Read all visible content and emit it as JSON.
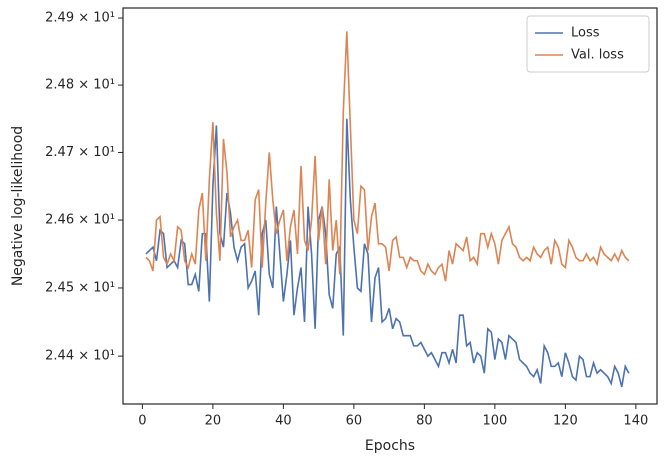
{
  "chart_data": {
    "type": "line",
    "xlabel": "Epochs",
    "ylabel": "Negative log-likelihood",
    "x": [
      1,
      2,
      3,
      4,
      5,
      6,
      7,
      8,
      9,
      10,
      11,
      12,
      13,
      14,
      15,
      16,
      17,
      18,
      19,
      20,
      21,
      22,
      23,
      24,
      25,
      26,
      27,
      28,
      29,
      30,
      31,
      32,
      33,
      34,
      35,
      36,
      37,
      38,
      39,
      40,
      41,
      42,
      43,
      44,
      45,
      46,
      47,
      48,
      49,
      50,
      51,
      52,
      53,
      54,
      55,
      56,
      57,
      58,
      59,
      60,
      61,
      62,
      63,
      64,
      65,
      66,
      67,
      68,
      69,
      70,
      71,
      72,
      73,
      74,
      75,
      76,
      77,
      78,
      79,
      80,
      81,
      82,
      83,
      84,
      85,
      86,
      87,
      88,
      89,
      90,
      91,
      92,
      93,
      94,
      95,
      96,
      97,
      98,
      99,
      100,
      101,
      102,
      103,
      104,
      105,
      106,
      107,
      108,
      109,
      110,
      111,
      112,
      113,
      114,
      115,
      116,
      117,
      118,
      119,
      120,
      121,
      122,
      123,
      124,
      125,
      126,
      127,
      128,
      129,
      130,
      131,
      132,
      133,
      134,
      135,
      136,
      137,
      138
    ],
    "series": [
      {
        "name": "Loss",
        "color": "#4c72b0",
        "values": [
          24.55,
          24.555,
          24.56,
          24.54,
          24.585,
          24.58,
          24.53,
          24.535,
          24.54,
          24.53,
          24.57,
          24.565,
          24.505,
          24.505,
          24.52,
          24.495,
          24.58,
          24.58,
          24.48,
          24.65,
          24.74,
          24.58,
          24.56,
          24.64,
          24.61,
          24.56,
          24.54,
          24.56,
          24.565,
          24.5,
          24.51,
          24.525,
          24.46,
          24.58,
          24.6,
          24.52,
          24.5,
          24.62,
          24.55,
          24.48,
          24.52,
          24.57,
          24.46,
          24.5,
          24.53,
          24.45,
          24.62,
          24.55,
          24.44,
          24.6,
          24.62,
          24.58,
          24.49,
          24.47,
          24.55,
          24.56,
          24.43,
          24.75,
          24.63,
          24.56,
          24.5,
          24.495,
          24.565,
          24.55,
          24.45,
          24.515,
          24.53,
          24.45,
          24.455,
          24.47,
          24.44,
          24.455,
          24.45,
          24.43,
          24.43,
          24.43,
          24.415,
          24.415,
          24.42,
          24.41,
          24.4,
          24.405,
          24.395,
          24.385,
          24.405,
          24.405,
          24.39,
          24.41,
          24.39,
          24.46,
          24.46,
          24.415,
          24.42,
          24.39,
          24.405,
          24.4,
          24.375,
          24.44,
          24.435,
          24.395,
          24.425,
          24.42,
          24.395,
          24.43,
          24.425,
          24.42,
          24.395,
          24.39,
          24.385,
          24.375,
          24.37,
          24.38,
          24.36,
          24.415,
          24.405,
          24.385,
          24.385,
          24.39,
          24.37,
          24.405,
          24.39,
          24.37,
          24.365,
          24.4,
          24.395,
          24.37,
          24.37,
          24.39,
          24.375,
          24.38,
          24.375,
          24.37,
          24.36,
          24.385,
          24.375,
          24.355,
          24.385,
          24.375
        ]
      },
      {
        "name": "Val. loss",
        "color": "#dd8452",
        "values": [
          24.545,
          24.54,
          24.525,
          24.6,
          24.605,
          24.545,
          24.535,
          24.55,
          24.54,
          24.59,
          24.585,
          24.54,
          24.53,
          24.55,
          24.535,
          24.615,
          24.64,
          24.54,
          24.66,
          24.745,
          24.61,
          24.54,
          24.72,
          24.67,
          24.575,
          24.59,
          24.6,
          24.57,
          24.57,
          24.585,
          24.53,
          24.63,
          24.645,
          24.53,
          24.625,
          24.7,
          24.63,
          24.58,
          24.6,
          24.615,
          24.54,
          24.59,
          24.615,
          24.55,
          24.68,
          24.57,
          24.555,
          24.6,
          24.695,
          24.57,
          24.62,
          24.535,
          24.66,
          24.555,
          24.6,
          24.52,
          24.76,
          24.88,
          24.74,
          24.6,
          24.58,
          24.65,
          24.645,
          24.555,
          24.605,
          24.625,
          24.565,
          24.565,
          24.56,
          24.525,
          24.57,
          24.575,
          24.545,
          24.545,
          24.53,
          24.545,
          24.54,
          24.54,
          24.525,
          24.52,
          24.535,
          24.525,
          24.52,
          24.53,
          24.535,
          24.51,
          24.555,
          24.535,
          24.565,
          24.56,
          24.555,
          24.575,
          24.54,
          24.545,
          24.535,
          24.58,
          24.58,
          24.56,
          24.58,
          24.565,
          24.535,
          24.57,
          24.58,
          24.59,
          24.565,
          24.56,
          24.545,
          24.54,
          24.545,
          24.54,
          24.56,
          24.55,
          24.545,
          24.555,
          24.56,
          24.535,
          24.57,
          24.56,
          24.535,
          24.53,
          24.57,
          24.56,
          24.545,
          24.54,
          24.54,
          24.55,
          24.54,
          24.545,
          24.535,
          24.56,
          24.55,
          24.545,
          24.54,
          24.55,
          24.54,
          24.555,
          24.545,
          24.54
        ]
      }
    ],
    "xlim": [
      -5.5,
      146
    ],
    "xticks": [
      0,
      20,
      40,
      60,
      80,
      100,
      120,
      140
    ],
    "ylim": [
      24.33,
      24.915
    ],
    "ylog": true,
    "yticks": [
      {
        "value": 24.4,
        "label": "2.44 × 10¹"
      },
      {
        "value": 24.5,
        "label": "2.45 × 10¹"
      },
      {
        "value": 24.6,
        "label": "2.46 × 10¹"
      },
      {
        "value": 24.7,
        "label": "2.47 × 10¹"
      },
      {
        "value": 24.8,
        "label": "2.48 × 10¹"
      },
      {
        "value": 24.9,
        "label": "2.49 × 10¹"
      }
    ],
    "legend": "upper right",
    "grid": false
  }
}
